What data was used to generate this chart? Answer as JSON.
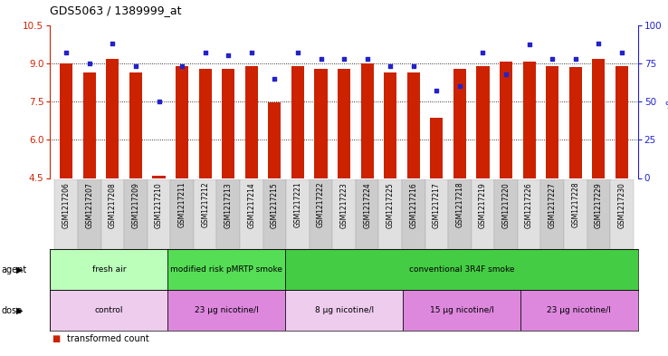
{
  "title": "GDS5063 / 1389999_at",
  "samples": [
    "GSM1217206",
    "GSM1217207",
    "GSM1217208",
    "GSM1217209",
    "GSM1217210",
    "GSM1217211",
    "GSM1217212",
    "GSM1217213",
    "GSM1217214",
    "GSM1217215",
    "GSM1217221",
    "GSM1217222",
    "GSM1217223",
    "GSM1217224",
    "GSM1217225",
    "GSM1217216",
    "GSM1217217",
    "GSM1217218",
    "GSM1217219",
    "GSM1217220",
    "GSM1217226",
    "GSM1217227",
    "GSM1217228",
    "GSM1217229",
    "GSM1217230"
  ],
  "bar_values": [
    8.98,
    8.65,
    9.17,
    8.63,
    4.58,
    8.88,
    8.78,
    8.78,
    8.88,
    7.47,
    8.88,
    8.78,
    8.78,
    9.0,
    8.63,
    8.63,
    6.85,
    8.78,
    8.88,
    9.05,
    9.05,
    8.88,
    8.85,
    9.17,
    8.88
  ],
  "percentile_ranks": [
    82,
    75,
    88,
    73,
    50,
    73,
    82,
    80,
    82,
    65,
    82,
    78,
    78,
    78,
    73,
    73,
    57,
    60,
    82,
    68,
    87,
    78,
    78,
    88,
    82
  ],
  "ylim_left": [
    4.5,
    10.5
  ],
  "ylim_right": [
    0,
    100
  ],
  "yticks_left": [
    4.5,
    6.0,
    7.5,
    9.0,
    10.5
  ],
  "yticks_right": [
    0,
    25,
    50,
    75,
    100
  ],
  "bar_color": "#cc2200",
  "dot_color": "#2222cc",
  "agent_groups": [
    {
      "label": "fresh air",
      "start": 0,
      "end": 5,
      "color": "#bbffbb"
    },
    {
      "label": "modified risk pMRTP smoke",
      "start": 5,
      "end": 10,
      "color": "#55dd55"
    },
    {
      "label": "conventional 3R4F smoke",
      "start": 10,
      "end": 25,
      "color": "#44cc44"
    }
  ],
  "dose_groups": [
    {
      "label": "control",
      "start": 0,
      "end": 5,
      "color": "#eeccee"
    },
    {
      "label": "23 μg nicotine/l",
      "start": 5,
      "end": 10,
      "color": "#dd88dd"
    },
    {
      "label": "8 μg nicotine/l",
      "start": 10,
      "end": 15,
      "color": "#eeccee"
    },
    {
      "label": "15 μg nicotine/l",
      "start": 15,
      "end": 20,
      "color": "#dd88dd"
    },
    {
      "label": "23 μg nicotine/l",
      "start": 20,
      "end": 25,
      "color": "#dd88dd"
    }
  ],
  "grid_yticks": [
    6.0,
    7.5,
    9.0
  ],
  "background_color": "#ffffff",
  "xtick_bg": "#e8e8e8"
}
